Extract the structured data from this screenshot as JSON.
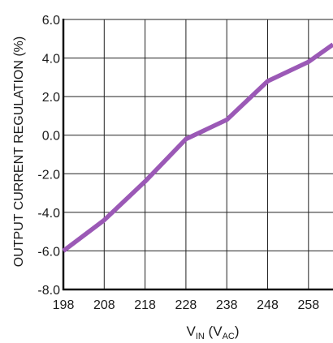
{
  "chart_data": {
    "type": "line",
    "ylabel": "OUTPUT CURRENT REGULATION (%)",
    "xlabel_main": "V",
    "xlabel_sub": "IN",
    "xlabel_unit_open": " (V",
    "xlabel_unit_sub": "AC",
    "xlabel_unit_close": ")",
    "xlim": [
      198,
      264
    ],
    "ylim": [
      -8,
      6
    ],
    "x_ticks": [
      198,
      208,
      218,
      228,
      238,
      248,
      258
    ],
    "x_tick_labels": [
      "198",
      "208",
      "218",
      "228",
      "238",
      "248",
      "258"
    ],
    "y_ticks": [
      6,
      4,
      2,
      0,
      -2,
      -4,
      -6,
      -8
    ],
    "y_tick_labels": [
      "6.0",
      "4.0",
      "2.0",
      "0.0",
      "-2.0",
      "-4.0",
      "-6.0",
      "-8.0"
    ],
    "grid": true,
    "series": [
      {
        "color": "#9b59b6",
        "x": [
          198,
          208,
          218,
          228,
          238,
          248,
          258,
          264
        ],
        "y": [
          -6.0,
          -4.4,
          -2.4,
          -0.2,
          0.8,
          2.8,
          3.8,
          4.7
        ]
      }
    ]
  }
}
